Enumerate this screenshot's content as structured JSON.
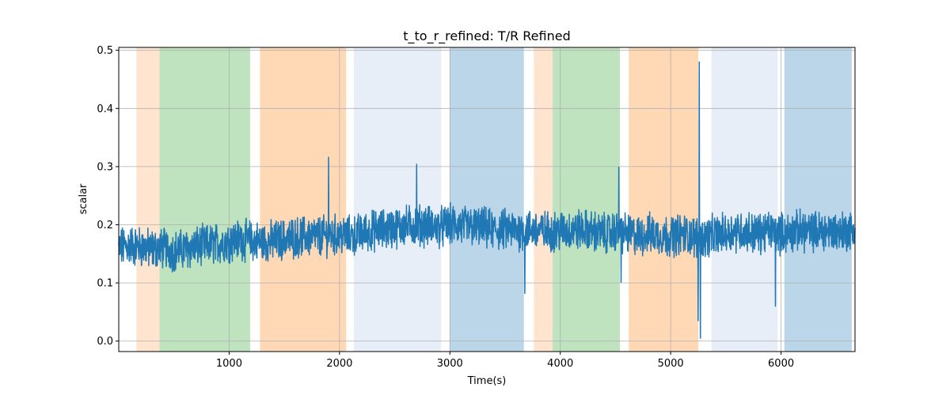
{
  "chart_data": {
    "type": "line",
    "title": "t_to_r_refined: T/R Refined",
    "xlabel": "Time(s)",
    "ylabel": "scalar",
    "xlim": [
      0,
      6670
    ],
    "ylim": [
      -0.018,
      0.505
    ],
    "xticks": [
      1000,
      2000,
      3000,
      4000,
      5000,
      6000
    ],
    "yticks": [
      0.0,
      0.1,
      0.2,
      0.3,
      0.4,
      0.5
    ],
    "ytick_labels": [
      "0.0",
      "0.1",
      "0.2",
      "0.3",
      "0.4",
      "0.5"
    ],
    "grid": true,
    "series": [
      {
        "color": "#1f77b4",
        "x": [
          0,
          100,
          200,
          300,
          400,
          500,
          600,
          700,
          800,
          900,
          1000,
          1100,
          1200,
          1300,
          1400,
          1500,
          1600,
          1700,
          1800,
          1900,
          2000,
          2100,
          2200,
          2300,
          2400,
          2500,
          2600,
          2700,
          2800,
          2900,
          3000,
          3100,
          3200,
          3300,
          3400,
          3500,
          3600,
          3700,
          3800,
          3900,
          4000,
          4100,
          4200,
          4300,
          4400,
          4500,
          4600,
          4700,
          4800,
          4900,
          5000,
          5100,
          5200,
          5300,
          5400,
          5500,
          5600,
          5700,
          5800,
          5900,
          6000,
          6100,
          6200,
          6300,
          6400,
          6500,
          6600,
          6670
        ],
        "y": [
          0.16,
          0.165,
          0.162,
          0.158,
          0.16,
          0.155,
          0.158,
          0.162,
          0.165,
          0.168,
          0.172,
          0.175,
          0.172,
          0.17,
          0.172,
          0.175,
          0.178,
          0.18,
          0.18,
          0.182,
          0.182,
          0.18,
          0.185,
          0.19,
          0.192,
          0.195,
          0.198,
          0.2,
          0.198,
          0.195,
          0.2,
          0.198,
          0.196,
          0.195,
          0.19,
          0.192,
          0.19,
          0.192,
          0.19,
          0.188,
          0.19,
          0.19,
          0.192,
          0.188,
          0.185,
          0.188,
          0.185,
          0.18,
          0.185,
          0.182,
          0.18,
          0.185,
          0.18,
          0.178,
          0.182,
          0.185,
          0.19,
          0.188,
          0.185,
          0.19,
          0.185,
          0.188,
          0.19,
          0.188,
          0.19,
          0.188,
          0.19,
          0.19
        ],
        "band_halfwidth": 0.03,
        "spikes": [
          {
            "x": 1900,
            "y": 0.316
          },
          {
            "x": 2700,
            "y": 0.304
          },
          {
            "x": 3680,
            "y": 0.082
          },
          {
            "x": 4530,
            "y": 0.299
          },
          {
            "x": 4550,
            "y": 0.101
          },
          {
            "x": 5250,
            "y": 0.035
          },
          {
            "x": 5260,
            "y": 0.48
          },
          {
            "x": 5270,
            "y": 0.005
          },
          {
            "x": 5950,
            "y": 0.06
          }
        ]
      }
    ],
    "shaded_regions": [
      {
        "x0": 160,
        "x1": 370,
        "color": "#ff7f0e",
        "alpha": 0.2
      },
      {
        "x0": 370,
        "x1": 1190,
        "color": "#2ca02c",
        "alpha": 0.3
      },
      {
        "x0": 1280,
        "x1": 2060,
        "color": "#ff7f0e",
        "alpha": 0.3
      },
      {
        "x0": 2130,
        "x1": 2920,
        "color": "#aec7e8",
        "alpha": 0.3
      },
      {
        "x0": 3000,
        "x1": 3670,
        "color": "#1f77b4",
        "alpha": 0.3
      },
      {
        "x0": 3760,
        "x1": 3930,
        "color": "#ff7f0e",
        "alpha": 0.2
      },
      {
        "x0": 3930,
        "x1": 4540,
        "color": "#2ca02c",
        "alpha": 0.3
      },
      {
        "x0": 4620,
        "x1": 5250,
        "color": "#ff7f0e",
        "alpha": 0.3
      },
      {
        "x0": 5370,
        "x1": 5970,
        "color": "#aec7e8",
        "alpha": 0.3
      },
      {
        "x0": 6030,
        "x1": 6640,
        "color": "#1f77b4",
        "alpha": 0.3
      }
    ]
  }
}
